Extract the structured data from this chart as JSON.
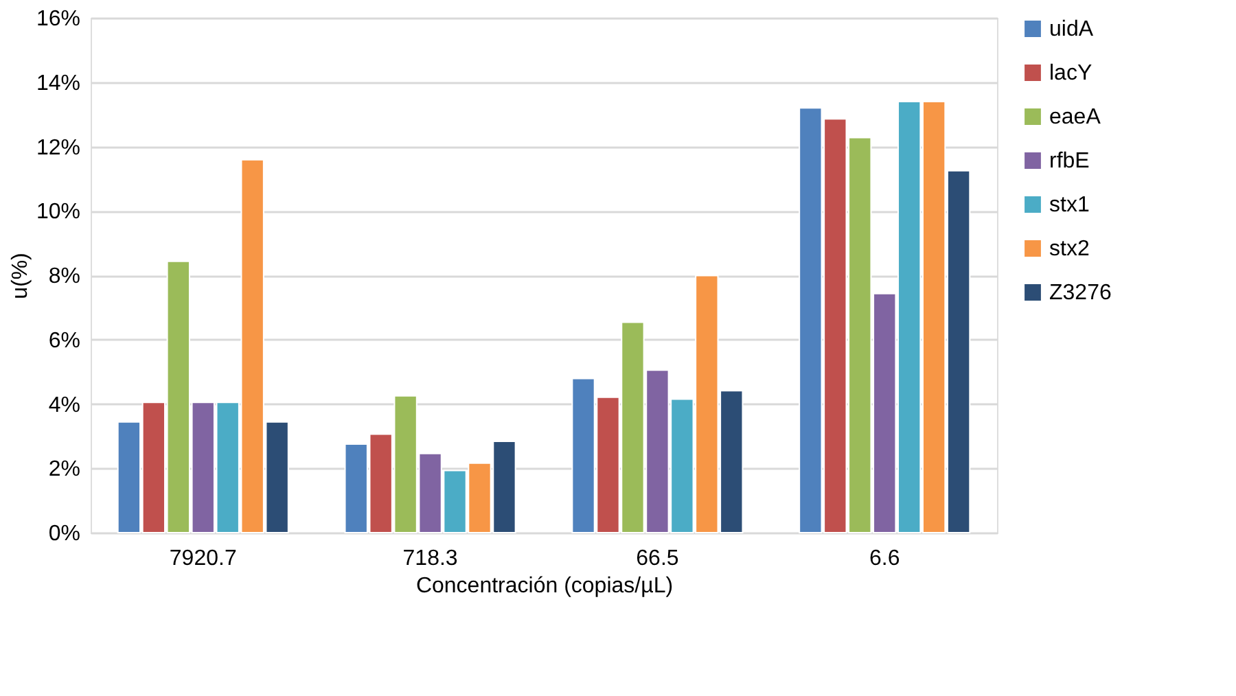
{
  "chart_data": {
    "type": "bar",
    "xlabel": "Concentración (copias/µL)",
    "ylabel": "u(%)",
    "categories": [
      "7920.7",
      "718.3",
      "66.5",
      "6.6"
    ],
    "series": [
      {
        "name": "uidA",
        "color": "#4f81bd",
        "values": [
          3.44,
          2.75,
          4.79,
          13.2
        ]
      },
      {
        "name": "lacY",
        "color": "#c0504d",
        "values": [
          4.05,
          3.06,
          4.21,
          12.86
        ]
      },
      {
        "name": "eaeA",
        "color": "#9bbb59",
        "values": [
          8.43,
          4.25,
          6.54,
          12.28
        ]
      },
      {
        "name": "rfbE",
        "color": "#8064a2",
        "values": [
          4.05,
          2.46,
          5.05,
          7.43
        ]
      },
      {
        "name": "stx1",
        "color": "#4bacc6",
        "values": [
          4.05,
          1.93,
          4.15,
          13.4
        ]
      },
      {
        "name": "stx2",
        "color": "#f79646",
        "values": [
          11.59,
          2.16,
          7.99,
          13.4
        ]
      },
      {
        "name": "Z3276",
        "color": "#2c4d75",
        "values": [
          3.44,
          2.84,
          4.41,
          11.25
        ]
      }
    ],
    "ylim": [
      0,
      16
    ],
    "yticks": [
      {
        "value": 0,
        "label": "0%"
      },
      {
        "value": 2,
        "label": "2%"
      },
      {
        "value": 4,
        "label": "4%"
      },
      {
        "value": 6,
        "label": "6%"
      },
      {
        "value": 8,
        "label": "8%"
      },
      {
        "value": 10,
        "label": "10%"
      },
      {
        "value": 12,
        "label": "12%"
      },
      {
        "value": 14,
        "label": "14%"
      },
      {
        "value": 16,
        "label": "16%"
      }
    ],
    "grid": "y",
    "legend": "right"
  }
}
